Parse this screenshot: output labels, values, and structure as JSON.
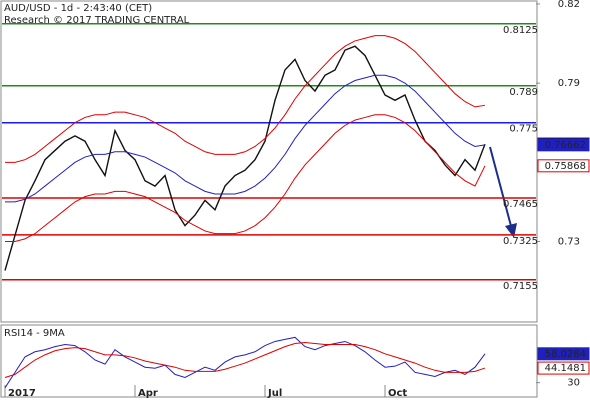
{
  "chart_data": [
    {
      "type": "line",
      "title": "AUD/USD - 1d - 2:43:40 (CET)",
      "subtitle": "Research © 2017 TRADING CENTRAL",
      "categories": [
        "2017",
        null,
        null,
        null,
        null,
        null,
        null,
        null,
        null,
        null,
        null,
        null,
        null,
        "Apr",
        null,
        null,
        null,
        null,
        null,
        null,
        null,
        null,
        null,
        null,
        null,
        null,
        "Jul",
        null,
        null,
        null,
        null,
        null,
        null,
        null,
        null,
        null,
        null,
        null,
        "Oct",
        null,
        null,
        null,
        null,
        null,
        null,
        null,
        null,
        null,
        null
      ],
      "ylim": [
        0.6995,
        0.8215
      ],
      "yticks": [
        0.82,
        0.79,
        0.73
      ],
      "levels": [
        {
          "value": 0.8125,
          "color": "#1e8c1e"
        },
        {
          "value": 0.789,
          "color": "#1e8c1e"
        },
        {
          "value": 0.775,
          "color": "#1a1aff"
        },
        {
          "value": 0.7465,
          "color": "#e00000"
        },
        {
          "value": 0.7325,
          "color": "#e00000"
        },
        {
          "value": 0.7155,
          "color": "#e00000"
        }
      ],
      "series": [
        {
          "name": "Close",
          "color": "#111111",
          "values": [
            0.719,
            0.7323,
            0.7456,
            0.753,
            0.761,
            0.7645,
            0.768,
            0.77,
            0.768,
            0.761,
            0.755,
            0.772,
            0.7645,
            0.761,
            0.753,
            0.751,
            0.755,
            0.742,
            0.736,
            0.74,
            0.7456,
            0.742,
            0.751,
            0.755,
            0.757,
            0.761,
            0.768,
            0.7835,
            0.795,
            0.799,
            0.791,
            0.787,
            0.793,
            0.795,
            0.8025,
            0.804,
            0.8005,
            0.793,
            0.7855,
            0.7835,
            0.7855,
            0.776,
            0.768,
            0.7645,
            0.759,
            0.755,
            0.761,
            0.757,
            0.76691
          ]
        },
        {
          "name": "MA",
          "color": "#2020c0",
          "values": [
            0.745,
            0.745,
            0.746,
            0.748,
            0.751,
            0.754,
            0.757,
            0.76,
            0.762,
            0.763,
            0.763,
            0.764,
            0.764,
            0.763,
            0.762,
            0.76,
            0.758,
            0.756,
            0.753,
            0.751,
            0.749,
            0.748,
            0.748,
            0.748,
            0.749,
            0.751,
            0.754,
            0.758,
            0.763,
            0.769,
            0.774,
            0.778,
            0.782,
            0.786,
            0.789,
            0.791,
            0.792,
            0.793,
            0.793,
            0.792,
            0.79,
            0.787,
            0.783,
            0.779,
            0.775,
            0.771,
            0.768,
            0.766,
            0.76662
          ]
        },
        {
          "name": "Upper",
          "color": "#e00000",
          "values": [
            0.76,
            0.76,
            0.761,
            0.763,
            0.766,
            0.769,
            0.772,
            0.775,
            0.777,
            0.778,
            0.778,
            0.779,
            0.779,
            0.778,
            0.777,
            0.775,
            0.773,
            0.771,
            0.768,
            0.766,
            0.764,
            0.763,
            0.763,
            0.763,
            0.764,
            0.766,
            0.769,
            0.773,
            0.778,
            0.784,
            0.789,
            0.793,
            0.797,
            0.801,
            0.804,
            0.806,
            0.807,
            0.808,
            0.808,
            0.807,
            0.805,
            0.802,
            0.798,
            0.794,
            0.79,
            0.786,
            0.783,
            0.781,
            0.7816
          ]
        },
        {
          "name": "Lower",
          "color": "#e00000",
          "values": [
            0.73,
            0.73,
            0.731,
            0.733,
            0.736,
            0.739,
            0.742,
            0.745,
            0.747,
            0.748,
            0.748,
            0.749,
            0.749,
            0.748,
            0.747,
            0.745,
            0.743,
            0.741,
            0.738,
            0.736,
            0.734,
            0.733,
            0.733,
            0.733,
            0.734,
            0.736,
            0.739,
            0.743,
            0.748,
            0.754,
            0.759,
            0.763,
            0.767,
            0.771,
            0.774,
            0.776,
            0.777,
            0.778,
            0.778,
            0.777,
            0.775,
            0.772,
            0.768,
            0.764,
            0.76,
            0.756,
            0.753,
            0.751,
            0.75868
          ]
        }
      ],
      "last_value_boxes": [
        0,
        1,
        3
      ]
    },
    {
      "type": "line",
      "title": "RSI14 - 9MA",
      "ylim": [
        18,
        86
      ],
      "yticks": [
        30
      ],
      "series": [
        {
          "name": "RSI14",
          "color": "#2020c0",
          "values": [
            25,
            40,
            55,
            60,
            62,
            65,
            67,
            66,
            60,
            52,
            48,
            62,
            55,
            50,
            45,
            44,
            47,
            38,
            35,
            40,
            45,
            42,
            50,
            55,
            57,
            60,
            66,
            70,
            72,
            74,
            65,
            62,
            66,
            68,
            70,
            66,
            60,
            52,
            45,
            46,
            50,
            40,
            38,
            36,
            40,
            42,
            38,
            45,
            58.0284
          ]
        },
        {
          "name": "9MA",
          "color": "#e00000",
          "values": [
            35,
            38,
            45,
            52,
            57,
            61,
            63,
            64,
            63,
            60,
            57,
            57,
            56,
            54,
            51,
            49,
            47,
            45,
            42,
            41,
            41,
            41,
            43,
            46,
            49,
            53,
            57,
            61,
            65,
            68,
            69,
            68,
            67,
            67,
            67,
            67,
            65,
            62,
            58,
            55,
            52,
            49,
            45,
            42,
            40,
            40,
            40,
            41,
            44.1481
          ]
        }
      ],
      "last_value_boxes": [
        0,
        1
      ]
    }
  ]
}
